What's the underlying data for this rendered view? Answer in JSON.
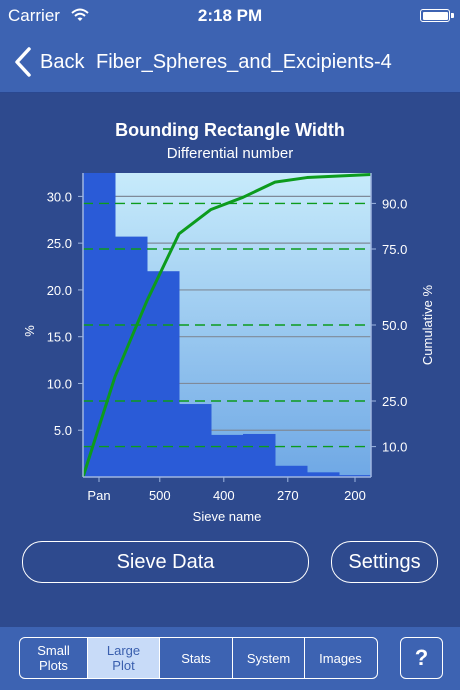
{
  "status": {
    "carrier": "Carrier",
    "time": "2:18 PM"
  },
  "nav": {
    "back_label": "Back",
    "title": "Fiber_Spheres_and_Excipients-4"
  },
  "chart_data": {
    "type": "bar",
    "title": "Bounding Rectangle Width",
    "subtitle": "Differential number",
    "xlabel": "Sieve name",
    "ylabel_left": "%",
    "ylabel_right": "Cumulative %",
    "x_tick_labels": [
      "Pan",
      "500",
      "400",
      "270",
      "200"
    ],
    "y_left_ticks": [
      "5.0",
      "10.0",
      "15.0",
      "20.0",
      "25.0",
      "30.0"
    ],
    "y_right_ticks": [
      "10.0",
      "25.0",
      "50.0",
      "75.0",
      "90.0"
    ],
    "ylim_left": [
      0,
      32.5
    ],
    "ylim_right": [
      0,
      100
    ],
    "bars": [
      {
        "value": 32.5
      },
      {
        "value": 25.7
      },
      {
        "value": 22.0
      },
      {
        "value": 7.8
      },
      {
        "value": 4.5
      },
      {
        "value": 4.6
      },
      {
        "value": 1.2
      },
      {
        "value": 0.5
      },
      {
        "value": 0.2
      }
    ],
    "cumulative_line": [
      0,
      33,
      58,
      80,
      88,
      92,
      97,
      98.5,
      99,
      99.5
    ],
    "reference_lines": [
      10,
      25,
      50,
      75,
      90
    ],
    "grid": true,
    "colors": {
      "bar": "#2a5bd7",
      "line": "#0c9b1d",
      "ref": "#0c9b1d",
      "grid": "#7f8a99",
      "bg_top": "#c7ebfb",
      "bg_bottom": "#6fa8e5"
    }
  },
  "buttons": {
    "sieve_data": "Sieve Data",
    "settings": "Settings"
  },
  "tabs": [
    {
      "label": "Small\nPlots",
      "active": false
    },
    {
      "label": "Large\nPlot",
      "active": true
    },
    {
      "label": "Stats",
      "active": false
    },
    {
      "label": "System",
      "active": false
    },
    {
      "label": "Images",
      "active": false
    }
  ],
  "help_label": "?"
}
